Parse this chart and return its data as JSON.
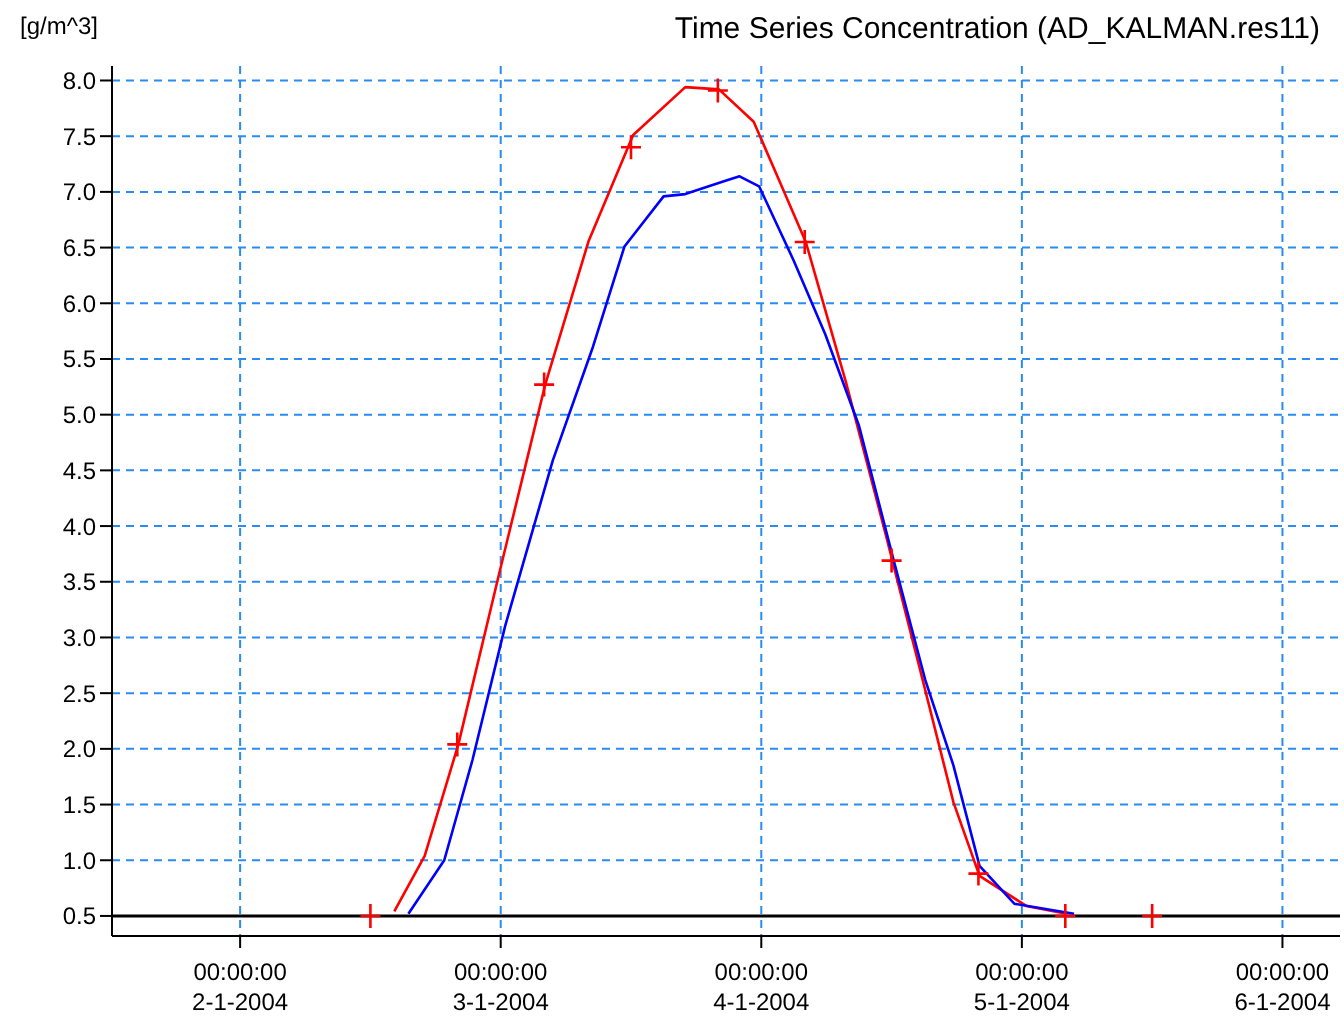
{
  "chart_data": {
    "type": "line",
    "title": "Time Series Concentration (AD_KALMAN.res11)",
    "ylabel": "[g/m^3]",
    "xlim": [
      "2004-01-01T12:12",
      "2004-01-06T05:18"
    ],
    "xticks": [
      {
        "value": "2004-01-02T00:00",
        "label": "00:00:00\n2-1-2004"
      },
      {
        "value": "2004-01-03T00:00",
        "label": "00:00:00\n3-1-2004"
      },
      {
        "value": "2004-01-04T00:00",
        "label": "00:00:00\n4-1-2004"
      },
      {
        "value": "2004-01-05T00:00",
        "label": "00:00:00\n5-1-2004"
      },
      {
        "value": "2004-01-06T00:00",
        "label": "00:00:00\n6-1-2004"
      }
    ],
    "ylim": [
      0.32,
      8.13
    ],
    "yticks": [
      {
        "value": 0.5,
        "label": "0.5"
      },
      {
        "value": 1,
        "label": "1.0"
      },
      {
        "value": 1.5,
        "label": "1.5"
      },
      {
        "value": 2,
        "label": "2.0"
      },
      {
        "value": 2.5,
        "label": "2.5"
      },
      {
        "value": 3,
        "label": "3.0"
      },
      {
        "value": 3.5,
        "label": "3.5"
      },
      {
        "value": 4,
        "label": "4.0"
      },
      {
        "value": 4.5,
        "label": "4.5"
      },
      {
        "value": 5,
        "label": "5.0"
      },
      {
        "value": 5.5,
        "label": "5.5"
      },
      {
        "value": 6,
        "label": "6.0"
      },
      {
        "value": 6.5,
        "label": "6.5"
      },
      {
        "value": 7,
        "label": "7.0"
      },
      {
        "value": 7.5,
        "label": "7.5"
      },
      {
        "value": 8,
        "label": "8.0"
      }
    ],
    "grid": true,
    "ref_lines": [
      {
        "axis": "y",
        "value": 0.5,
        "color": "#000000"
      }
    ],
    "series": [
      {
        "marker": "none",
        "color": "#ff0000",
        "x": [
          "2004-01-02T14:12",
          "2004-01-02T17:00",
          "2004-01-02T20:06",
          "2004-01-02T23:48",
          "2004-01-03T04:06",
          "2004-01-03T08:06",
          "2004-01-03T12:12",
          "2004-01-03T17:00",
          "2004-01-03T20:06",
          "2004-01-03T23:18",
          "2004-01-04T01:42",
          "2004-01-04T04:06",
          "2004-01-04T07:48",
          "2004-01-04T11:30",
          "2004-01-04T14:36",
          "2004-01-04T17:42",
          "2004-01-04T20:06",
          "2004-01-05T00:24",
          "2004-01-05T04:06"
        ],
        "values": [
          0.54,
          1.04,
          2.04,
          3.55,
          5.27,
          6.56,
          7.51,
          7.94,
          7.92,
          7.63,
          7.09,
          6.55,
          5.29,
          3.91,
          2.72,
          1.52,
          0.86,
          0.59,
          0.52
        ]
      },
      {
        "marker": "none",
        "color": "#0000ff",
        "x": [
          "2004-01-02T15:30",
          "2004-01-02T18:48",
          "2004-01-02T21:24",
          "2004-01-03T00:24",
          "2004-01-03T04:48",
          "2004-01-03T08:30",
          "2004-01-03T11:24",
          "2004-01-03T15:00",
          "2004-01-03T17:00",
          "2004-01-03T20:42",
          "2004-01-03T22:00",
          "2004-01-03T23:48",
          "2004-01-04T03:00",
          "2004-01-04T05:54",
          "2004-01-04T09:00",
          "2004-01-04T12:12",
          "2004-01-04T15:06",
          "2004-01-04T17:42",
          "2004-01-04T20:06",
          "2004-01-04T23:18",
          "2004-01-05T04:48"
        ],
        "values": [
          0.52,
          1.0,
          1.9,
          3.1,
          4.59,
          5.61,
          6.51,
          6.96,
          6.98,
          7.1,
          7.14,
          7.05,
          6.38,
          5.72,
          4.9,
          3.69,
          2.62,
          1.85,
          0.95,
          0.61,
          0.52
        ]
      },
      {
        "type": "scatter",
        "marker": "cross",
        "color": "#ff0000",
        "x": [
          "2004-01-02T12:00",
          "2004-01-02T20:00",
          "2004-01-03T04:00",
          "2004-01-03T12:00",
          "2004-01-03T20:00",
          "2004-01-04T04:00",
          "2004-01-04T12:00",
          "2004-01-04T20:00",
          "2004-01-05T04:00",
          "2004-01-05T12:00"
        ],
        "values": [
          0.5,
          2.04,
          5.27,
          7.4,
          7.91,
          6.55,
          3.69,
          0.88,
          0.5,
          0.5
        ]
      }
    ]
  }
}
